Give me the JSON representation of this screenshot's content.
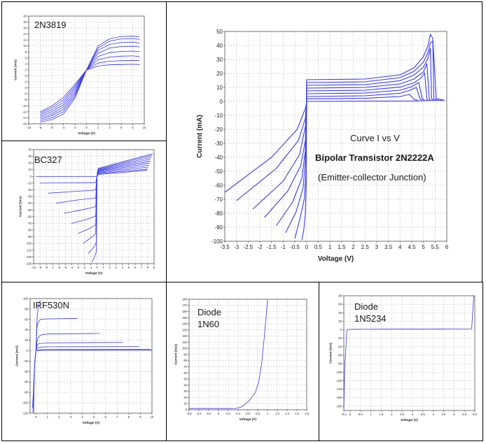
{
  "figure": {
    "grid_color": "#c8c8c8",
    "curve_color": "#3a3ae8"
  },
  "chart_data": [
    {
      "id": "c2n3819",
      "type": "line",
      "label": "2N3819",
      "xlabel": "Voltage (V)",
      "ylabel": "Current (mA)",
      "xlim": [
        -10,
        10
      ],
      "ylim": [
        -16,
        20
      ],
      "xticks": [
        -10,
        -8,
        -6,
        -4,
        -2,
        0,
        2,
        4,
        6,
        8,
        10
      ],
      "yticks": [
        -16,
        -14,
        -12,
        -10,
        -8,
        -6,
        -4,
        -2,
        0,
        2,
        4,
        6,
        8,
        10,
        12,
        14,
        16,
        18,
        20
      ],
      "series": [
        {
          "x": [
            -8,
            -6,
            -4,
            -2,
            0,
            2,
            4,
            6,
            8,
            9.2
          ],
          "y": [
            -15.5,
            -14.6,
            -12.8,
            -7.5,
            2.0,
            10.0,
            12.4,
            13.2,
            13.3,
            13.0
          ]
        },
        {
          "x": [
            -8,
            -6,
            -4,
            -2,
            0,
            2,
            4,
            6,
            8,
            9.2
          ],
          "y": [
            -15.0,
            -14.0,
            -12.0,
            -6.8,
            2.0,
            9.3,
            11.6,
            12.4,
            12.5,
            12.2
          ]
        },
        {
          "x": [
            -8,
            -6,
            -4,
            -2,
            0,
            2,
            4,
            6,
            8,
            9.2
          ],
          "y": [
            -14.5,
            -13.3,
            -11.2,
            -6.1,
            2.0,
            8.6,
            10.5,
            11.2,
            11.3,
            11.0
          ]
        },
        {
          "x": [
            -8,
            -6,
            -4,
            -2,
            0,
            2,
            4,
            6,
            8,
            9.2
          ],
          "y": [
            -14.0,
            -12.7,
            -10.4,
            -5.4,
            2.0,
            7.6,
            9.3,
            9.8,
            9.9,
            9.7
          ]
        },
        {
          "x": [
            -8,
            -6,
            -4,
            -2,
            0,
            2,
            4,
            6,
            8,
            9.2
          ],
          "y": [
            -13.5,
            -12.0,
            -9.6,
            -4.7,
            2.0,
            6.5,
            7.8,
            8.2,
            8.3,
            8.1
          ]
        },
        {
          "x": [
            -8,
            -6,
            -4,
            -2,
            0,
            2,
            4,
            6,
            8,
            9.2
          ],
          "y": [
            -13.0,
            -11.3,
            -8.8,
            -4.0,
            2.0,
            5.4,
            6.3,
            6.6,
            6.7,
            6.5
          ]
        },
        {
          "x": [
            -8,
            -6,
            -4,
            -2,
            0,
            2,
            4,
            6,
            8,
            9.2
          ],
          "y": [
            -12.5,
            -10.6,
            -8.0,
            -3.4,
            2.0,
            4.3,
            4.9,
            5.1,
            5.2,
            5.1
          ]
        },
        {
          "x": [
            -8,
            -6,
            -4,
            -2,
            0,
            2,
            4,
            6,
            8,
            9.2
          ],
          "y": [
            -12.0,
            -10.0,
            -7.2,
            -2.8,
            2.0,
            3.3,
            3.7,
            3.8,
            3.9,
            3.8
          ]
        }
      ]
    },
    {
      "id": "cbc327",
      "type": "line",
      "label": "BC327",
      "xlabel": "Voltage (V)",
      "ylabel": "Current (mA)",
      "xlim": [
        -10,
        9
      ],
      "ylim": [
        -130,
        40
      ],
      "xticks": [
        -10,
        -9,
        -8,
        -7,
        -6,
        -5,
        -4,
        -3,
        -2,
        -1,
        0,
        1,
        2,
        3,
        4,
        5,
        6,
        7,
        8,
        9
      ],
      "yticks": [
        -130,
        -120,
        -110,
        -100,
        -90,
        -80,
        -70,
        -60,
        -50,
        -40,
        -30,
        -20,
        -10,
        0,
        10,
        20,
        30,
        40
      ],
      "series": [
        {
          "x": [
            -9.6,
            0,
            0.1,
            0.2,
            8.8
          ],
          "y": [
            0,
            0,
            6,
            12,
            34
          ]
        },
        {
          "x": [
            -9.0,
            -4,
            -1,
            -0.2,
            0,
            0.1,
            0.2,
            8.7
          ],
          "y": [
            -10,
            -9.5,
            -9.3,
            -9,
            0,
            8,
            11,
            32
          ]
        },
        {
          "x": [
            -7.7,
            -3,
            -1,
            -0.2,
            0,
            0.1,
            0.2,
            8.6
          ],
          "y": [
            -25,
            -22,
            -21,
            -20,
            0,
            7,
            10,
            29
          ]
        },
        {
          "x": [
            -6.5,
            -3,
            -1,
            -0.2,
            0,
            0.1,
            0.2,
            8.5
          ],
          "y": [
            -40,
            -35,
            -33,
            -32,
            0,
            6,
            9,
            26
          ]
        },
        {
          "x": [
            -5.2,
            -2.5,
            -1,
            -0.2,
            0,
            0.2,
            8.4
          ],
          "y": [
            -55,
            -50,
            -47,
            -45,
            0,
            8,
            23
          ]
        },
        {
          "x": [
            -4.0,
            -2,
            -1,
            -0.2,
            0,
            0.2,
            8.3
          ],
          "y": [
            -70,
            -65,
            -62,
            -59,
            0,
            7,
            20
          ]
        },
        {
          "x": [
            -3.0,
            -1.5,
            -0.7,
            -0.2,
            0,
            0.2,
            8.2
          ],
          "y": [
            -85,
            -79,
            -75,
            -72,
            0,
            6,
            17
          ]
        },
        {
          "x": [
            -2.2,
            -1.2,
            -0.5,
            -0.2,
            0,
            0.2,
            8.1
          ],
          "y": [
            -100,
            -93,
            -88,
            -85,
            0,
            5,
            14
          ]
        },
        {
          "x": [
            -1.4,
            -0.7,
            -0.3,
            -0.1,
            0,
            0.2,
            8.0
          ],
          "y": [
            -115,
            -108,
            -102,
            -98,
            0,
            4,
            11
          ]
        },
        {
          "x": [
            -0.8,
            -0.4,
            -0.1,
            0,
            0.2,
            7.9
          ],
          "y": [
            -128,
            -120,
            -112,
            0,
            3,
            9
          ]
        }
      ]
    },
    {
      "id": "c2n2222",
      "type": "line",
      "xlabel": "Voltage (V)",
      "ylabel": "Current (mA)",
      "xlim": [
        -3.5,
        6
      ],
      "ylim": [
        -100,
        50
      ],
      "xticks": [
        -3.5,
        -3,
        -2.5,
        -2,
        -1.5,
        -1,
        -0.5,
        0,
        0.5,
        1,
        1.5,
        2,
        2.5,
        3,
        3.5,
        4,
        4.5,
        5,
        5.5,
        6
      ],
      "xticklabels": [
        "-3.5",
        "-3",
        "-2.5",
        "-2",
        "-1.5",
        "-1",
        "-0.5",
        "0",
        "0.5",
        "1",
        "1.5",
        "2",
        "2.5",
        "3",
        "3.5",
        "4",
        "4.5",
        "5",
        "5.5",
        "6"
      ],
      "yticks": [
        -100,
        -90,
        -80,
        -70,
        -60,
        -50,
        -40,
        -30,
        -20,
        -10,
        0,
        10,
        20,
        30,
        40,
        50
      ],
      "annotations": [
        "Curve I vs V",
        "Bipolar Transistor 2N2222A",
        "(Emitter-collector Junction)"
      ],
      "series": [
        {
          "x": [
            0,
            4.6,
            4.95,
            5.1,
            5.25,
            5.4,
            5.55,
            5.7,
            5.9
          ],
          "y": [
            0,
            0.3,
            0.5,
            0.7,
            0.8,
            0.8,
            0.8,
            0.8,
            0.8
          ]
        },
        {
          "x": [
            -3.5,
            -1.5,
            -0.4,
            -0.05,
            0,
            0,
            2.5,
            4.0,
            4.6,
            5.0,
            5.2,
            5.3,
            5.4,
            5.55,
            5.9
          ],
          "y": [
            -65,
            -40,
            -20,
            -5,
            -1,
            15.5,
            16.0,
            19.0,
            24.0,
            32.0,
            40.0,
            48.0,
            45.0,
            2.0,
            0.8
          ]
        },
        {
          "x": [
            -3.0,
            -1.3,
            -0.35,
            -0.05,
            0,
            0,
            2.5,
            4.0,
            4.6,
            5.0,
            5.2,
            5.3,
            5.4,
            5.45,
            5.6
          ],
          "y": [
            -71,
            -48,
            -28,
            -12,
            -1,
            13.5,
            14.0,
            17.0,
            21.5,
            28.0,
            35.0,
            42.0,
            43.0,
            2.0,
            0.8
          ]
        },
        {
          "x": [
            -2.3,
            -1.0,
            -0.3,
            -0.05,
            0,
            0,
            2.5,
            4.0,
            4.6,
            5.0,
            5.2,
            5.3,
            5.35,
            5.45
          ],
          "y": [
            -77,
            -57,
            -38,
            -18,
            -1,
            11.5,
            12.0,
            14.8,
            18.8,
            24.5,
            31.0,
            38.0,
            2.0,
            0.8
          ]
        },
        {
          "x": [
            -1.8,
            -0.8,
            -0.25,
            -0.05,
            0,
            0,
            2.5,
            4.0,
            4.6,
            5.0,
            5.15,
            5.25,
            5.3
          ],
          "y": [
            -83,
            -64,
            -46,
            -28,
            -1,
            9.5,
            10.0,
            12.5,
            16.0,
            21.0,
            27.0,
            2.0,
            0.8
          ]
        },
        {
          "x": [
            -1.3,
            -0.6,
            -0.2,
            -0.05,
            0,
            0,
            2.5,
            4.0,
            4.6,
            4.9,
            5.05,
            5.15,
            5.2
          ],
          "y": [
            -89,
            -72,
            -55,
            -35,
            -1,
            7.5,
            8.0,
            10.2,
            13.3,
            16.8,
            20.5,
            2.0,
            0.8
          ]
        },
        {
          "x": [
            -0.9,
            -0.45,
            -0.15,
            -0.05,
            0,
            0,
            2.5,
            4.0,
            4.5,
            4.8,
            4.95,
            5.05
          ],
          "y": [
            -94,
            -79,
            -62,
            -43,
            -1,
            5.5,
            6.0,
            8.0,
            10.5,
            13.5,
            2.0,
            0.8
          ]
        },
        {
          "x": [
            -0.5,
            -0.3,
            -0.1,
            -0.03,
            0,
            0,
            2.5,
            4.0,
            4.4,
            4.7,
            4.85,
            4.95
          ],
          "y": [
            -98,
            -85,
            -70,
            -52,
            -1,
            3.5,
            4.0,
            5.8,
            7.8,
            10.0,
            2.0,
            0.8
          ]
        },
        {
          "x": [
            -0.2,
            -0.12,
            -0.05,
            -0.02,
            0,
            0,
            2.5,
            4.0,
            4.4,
            4.6,
            4.75
          ],
          "y": [
            -99,
            -92,
            -80,
            -62,
            -1,
            1.8,
            2.2,
            3.5,
            5.0,
            1.5,
            0.8
          ]
        }
      ]
    },
    {
      "id": "cirf530",
      "type": "line",
      "label": "IRF530N",
      "xlabel": "Voltage (V)",
      "ylabel": "Current (mA)",
      "xlim": [
        -0.5,
        10
      ],
      "ylim": [
        -120,
        100
      ],
      "xticks": [
        0,
        1,
        2,
        3,
        4,
        5,
        6,
        7,
        8,
        9,
        10
      ],
      "yticks": [
        -120,
        -100,
        -80,
        -60,
        -40,
        -20,
        0,
        20,
        40,
        60,
        80,
        100
      ],
      "series": [
        {
          "x": [
            -0.2,
            -0.15,
            -0.1,
            0
          ],
          "y": [
            -120,
            -60,
            -20,
            0
          ]
        },
        {
          "x": [
            -0.25,
            -0.2,
            -0.12,
            -0.05,
            0
          ],
          "y": [
            -118,
            -70,
            -30,
            -8,
            0
          ]
        },
        {
          "x": [
            -0.3,
            -0.22,
            -0.15,
            -0.05,
            0
          ],
          "y": [
            -110,
            -80,
            -40,
            -12,
            0
          ]
        },
        {
          "x": [
            0,
            0.05,
            0.1,
            0.2,
            0.3,
            0.4
          ],
          "y": [
            0,
            30,
            60,
            85,
            93,
            97
          ]
        },
        {
          "x": [
            0,
            0.05,
            0.1,
            0.2,
            0.4,
            0.8,
            3.6
          ],
          "y": [
            0,
            25,
            45,
            55,
            60,
            61,
            62
          ]
        },
        {
          "x": [
            0,
            0.1,
            0.2,
            0.4,
            1,
            5.5
          ],
          "y": [
            0,
            18,
            25,
            30,
            32,
            33
          ]
        },
        {
          "x": [
            0,
            0.1,
            0.2,
            0.4,
            1,
            7.5
          ],
          "y": [
            0,
            10,
            13,
            14,
            15,
            16
          ]
        },
        {
          "x": [
            0,
            0.1,
            0.2,
            0.5,
            1,
            8.9
          ],
          "y": [
            0,
            4,
            6,
            7,
            7.5,
            8
          ]
        },
        {
          "x": [
            0,
            0.2,
            0.5,
            1,
            9.9
          ],
          "y": [
            0,
            1.5,
            2,
            2.2,
            2.5
          ]
        },
        {
          "x": [
            0,
            0.2,
            0.5,
            1,
            10
          ],
          "y": [
            0,
            0.5,
            0.8,
            1,
            1
          ]
        }
      ]
    },
    {
      "id": "c1n60",
      "type": "line",
      "label": "Diode\n1N60",
      "xlabel": "Voltage (V)",
      "ylabel": "Current (mA)",
      "xlim": [
        -0.6,
        1.8
      ],
      "ylim": [
        0,
        180
      ],
      "xticks": [
        -0.6,
        -0.4,
        -0.2,
        0,
        0.2,
        0.4,
        0.6,
        0.8,
        1,
        1.2,
        1.4,
        1.6,
        1.8
      ],
      "yticks": [
        0,
        10,
        20,
        30,
        40,
        50,
        60,
        70,
        80,
        90,
        100,
        110,
        120,
        130,
        140,
        150,
        160,
        170,
        180
      ],
      "series": [
        {
          "x": [
            -0.6,
            -0.3,
            0,
            0.2,
            0.35,
            0.45,
            0.55,
            0.65,
            0.75,
            0.82,
            0.88,
            0.93,
            0.97,
            1.0
          ],
          "y": [
            2,
            2,
            2,
            2,
            2.2,
            4,
            9,
            17,
            28,
            45,
            75,
            115,
            150,
            180
          ]
        }
      ]
    },
    {
      "id": "c1n5234",
      "type": "line",
      "label": "Diode\n1N5234",
      "xlabel": "Voltage (V)",
      "ylabel": "Current (mA)",
      "xlim": [
        -0.3,
        6.0
      ],
      "ylim": [
        -190,
        80
      ],
      "xticks": [
        -0.3,
        0,
        0.5,
        1,
        1.5,
        2,
        2.5,
        3,
        3.5,
        4,
        4.5,
        5,
        5.5,
        6.0
      ],
      "xticklabels": [
        "-0.3",
        "0",
        "0.5",
        "1",
        "1.5",
        "2",
        "2.5",
        "3",
        "3.5",
        "4",
        "4.5",
        "5",
        "5.5",
        "6.0"
      ],
      "yticks": [
        -180,
        -160,
        -140,
        -120,
        -100,
        -80,
        -60,
        -40,
        -20,
        0,
        20,
        40,
        60,
        80
      ],
      "series": [
        {
          "x": [
            -0.3,
            -0.27,
            -0.25,
            -0.22,
            -0.2,
            -0.18,
            -0.15,
            -0.1,
            0,
            0.5,
            1,
            2,
            3,
            4,
            5,
            5.85,
            5.9,
            5.95
          ],
          "y": [
            -185,
            -120,
            -80,
            -60,
            -40,
            -20,
            0,
            1,
            1,
            1.2,
            1.2,
            1.5,
            1.5,
            1.5,
            1.8,
            2,
            40,
            80
          ]
        }
      ]
    }
  ]
}
